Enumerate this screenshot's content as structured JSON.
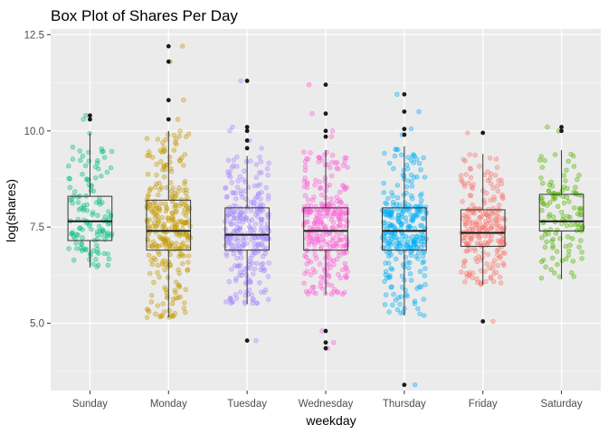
{
  "chart_data": {
    "type": "box",
    "title": "Box Plot of Shares Per Day",
    "xlabel": "weekday",
    "ylabel": "log(shares)",
    "ylim": [
      3.25,
      12.65
    ],
    "yticks": [
      5.0,
      7.5,
      10.0,
      12.5
    ],
    "ytick_labels": [
      "5.0",
      "7.5",
      "10.0",
      "12.5"
    ],
    "grid": true,
    "categories": [
      "Sunday",
      "Monday",
      "Tuesday",
      "Wednesday",
      "Thursday",
      "Friday",
      "Saturday"
    ],
    "colors": [
      "#00BF7D",
      "#C49A00",
      "#A58AFF",
      "#FB61D7",
      "#00B0F6",
      "#F8766D",
      "#53B400"
    ],
    "point_counts": [
      130,
      300,
      280,
      290,
      290,
      230,
      120
    ],
    "boxes": [
      {
        "q1": 7.15,
        "median": 7.65,
        "q3": 8.3,
        "whisker_low": 6.45,
        "whisker_high": 9.95,
        "outliers": [
          10.3,
          10.4
        ]
      },
      {
        "q1": 6.9,
        "median": 7.4,
        "q3": 8.2,
        "whisker_low": 5.15,
        "whisker_high": 10.0,
        "outliers": [
          10.3,
          10.8,
          11.8,
          12.2
        ]
      },
      {
        "q1": 6.9,
        "median": 7.3,
        "q3": 8.0,
        "whisker_low": 5.5,
        "whisker_high": 9.35,
        "outliers": [
          4.55,
          9.55,
          9.75,
          10.0,
          10.1,
          11.3
        ]
      },
      {
        "q1": 6.9,
        "median": 7.4,
        "q3": 8.0,
        "whisker_low": 5.75,
        "whisker_high": 9.5,
        "outliers": [
          4.35,
          4.5,
          4.8,
          9.85,
          10.0,
          10.45,
          11.2
        ]
      },
      {
        "q1": 6.9,
        "median": 7.4,
        "q3": 8.0,
        "whisker_low": 5.2,
        "whisker_high": 9.6,
        "outliers": [
          3.4,
          9.9,
          10.05,
          10.5,
          10.95
        ]
      },
      {
        "q1": 7.0,
        "median": 7.35,
        "q3": 7.95,
        "whisker_low": 6.0,
        "whisker_high": 9.4,
        "outliers": [
          5.05,
          9.95
        ]
      },
      {
        "q1": 7.4,
        "median": 7.65,
        "q3": 8.35,
        "whisker_low": 6.15,
        "whisker_high": 9.5,
        "outliers": [
          10.0,
          10.1
        ]
      }
    ]
  }
}
